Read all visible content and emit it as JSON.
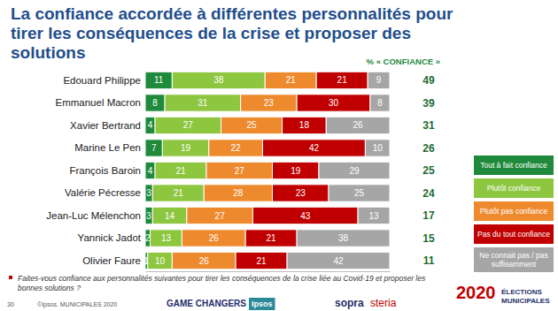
{
  "chart_data": {
    "type": "bar",
    "title": "La confiance accordée à différentes personnalités pour tirer les conséquences de la crise et proposer des solutions",
    "orientation": "horizontal",
    "stacked": true,
    "data_labels": true,
    "tick_labels": "y",
    "legend": "right",
    "xlim": [
      0,
      100
    ],
    "categories": [
      "Edouard Philippe",
      "Emmanuel Macron",
      "Xavier Bertrand",
      "Marine Le Pen",
      "François Baroin",
      "Valérie Pécresse",
      "Jean-Luc Mélenchon",
      "Yannick Jadot",
      "Olivier Faure"
    ],
    "series": [
      {
        "name": "Tout à fait confiance",
        "color": "#1f8a3b",
        "values": [
          11,
          8,
          4,
          7,
          4,
          3,
          3,
          2,
          1
        ]
      },
      {
        "name": "Plutôt confiance",
        "color": "#8dc63f",
        "values": [
          38,
          31,
          27,
          19,
          21,
          21,
          14,
          13,
          10
        ]
      },
      {
        "name": "Plutôt pas confiance",
        "color": "#ee8a2e",
        "values": [
          21,
          23,
          25,
          22,
          27,
          28,
          27,
          26,
          26
        ]
      },
      {
        "name": "Pas du tout confiance",
        "color": "#c00000",
        "values": [
          21,
          30,
          18,
          42,
          19,
          23,
          43,
          21,
          21
        ]
      },
      {
        "name": "Ne connait pas / pas suffisamment",
        "color": "#a6a6a6",
        "values": [
          9,
          8,
          26,
          10,
          29,
          25,
          13,
          38,
          42
        ]
      }
    ],
    "totals_label": "% « CONFIANCE »",
    "totals": [
      49,
      39,
      31,
      26,
      25,
      24,
      17,
      15,
      11
    ],
    "footnote": "Faites-vous confiance aux personnalités suivantes pour tirer les conséquences de la crise liée au Covid-19 et proposer les bonnes solutions ?",
    "annotations": [
      "30",
      "©Ipsos. MUNICIPALES 2020",
      "GAME CHANGERS",
      "Ipsos",
      "sopra",
      "steria",
      "2020",
      "ÉLECTIONS",
      "MUNICIPALES"
    ]
  }
}
